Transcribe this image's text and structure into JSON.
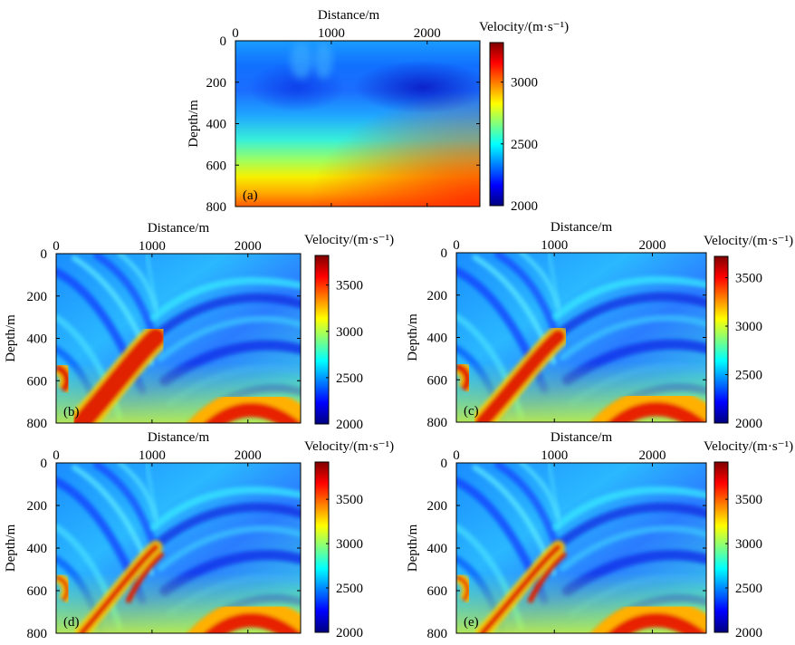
{
  "chart_data": [
    {
      "type": "heatmap",
      "panel_label": "(a)",
      "xlabel": "Distance/m",
      "ylabel": "Depth/m",
      "xticks": [
        "0",
        "1000",
        "2000"
      ],
      "yticks": [
        "0",
        "200",
        "400",
        "600",
        "800"
      ],
      "xlim": [
        0,
        2550
      ],
      "ylim": [
        0,
        800
      ],
      "colorbar": {
        "label": "Velocity/(m·s⁻¹)",
        "ticks": [
          "2000",
          "2500",
          "3000"
        ],
        "range": [
          2000,
          3320
        ]
      },
      "field": "smooth initial model: low-velocity zone ~2000–2200 m/s between 100–400 m depth, increasing to ~3300 m/s at 800 m"
    },
    {
      "type": "heatmap",
      "panel_label": "(b)",
      "xlabel": "Distance/m",
      "ylabel": "Depth/m",
      "xticks": [
        "0",
        "1000",
        "2000"
      ],
      "yticks": [
        "0",
        "200",
        "400",
        "600",
        "800"
      ],
      "xlim": [
        0,
        2550
      ],
      "ylim": [
        0,
        800
      ],
      "colorbar": {
        "label": "Velocity/(m·s⁻¹)",
        "ticks": [
          "2000",
          "2500",
          "3000",
          "3500"
        ],
        "range": [
          2000,
          3820
        ]
      },
      "field": "true model: dipping layers, fault near 1050 m, high-velocity wedge ~3700 m/s"
    },
    {
      "type": "heatmap",
      "panel_label": "(c)",
      "xlabel": "Distance/m",
      "ylabel": "Depth/m",
      "xticks": [
        "0",
        "1000",
        "2000"
      ],
      "yticks": [
        "0",
        "200",
        "400",
        "600",
        "800"
      ],
      "xlim": [
        0,
        2550
      ],
      "ylim": [
        0,
        800
      ],
      "colorbar": {
        "label": "Velocity/(m·s⁻¹)",
        "ticks": [
          "2000",
          "2500",
          "3000",
          "3500"
        ],
        "range": [
          2000,
          3720
        ]
      },
      "field": "inversion result c"
    },
    {
      "type": "heatmap",
      "panel_label": "(d)",
      "xlabel": "Distance/m",
      "ylabel": "Depth/m",
      "xticks": [
        "0",
        "1000",
        "2000"
      ],
      "yticks": [
        "0",
        "200",
        "400",
        "600",
        "800"
      ],
      "xlim": [
        0,
        2550
      ],
      "ylim": [
        0,
        800
      ],
      "colorbar": {
        "label": "Velocity/(m·s⁻¹)",
        "ticks": [
          "2000",
          "2500",
          "3000",
          "3500"
        ],
        "range": [
          2000,
          3920
        ]
      },
      "field": "inversion result d"
    },
    {
      "type": "heatmap",
      "panel_label": "(e)",
      "xlabel": "Distance/m",
      "ylabel": "Depth/m",
      "xticks": [
        "0",
        "1000",
        "2000"
      ],
      "yticks": [
        "0",
        "200",
        "400",
        "600",
        "800"
      ],
      "xlim": [
        0,
        2550
      ],
      "ylim": [
        0,
        800
      ],
      "colorbar": {
        "label": "Velocity/(m·s⁻¹)",
        "ticks": [
          "2000",
          "2500",
          "3000",
          "3500"
        ],
        "range": [
          2000,
          3920
        ]
      },
      "field": "inversion result e"
    }
  ],
  "colors": {
    "jet": [
      "#00007f",
      "#0000ff",
      "#007fff",
      "#00ffff",
      "#7fff7f",
      "#ffff00",
      "#ff7f00",
      "#ff0000",
      "#7f0000"
    ]
  }
}
